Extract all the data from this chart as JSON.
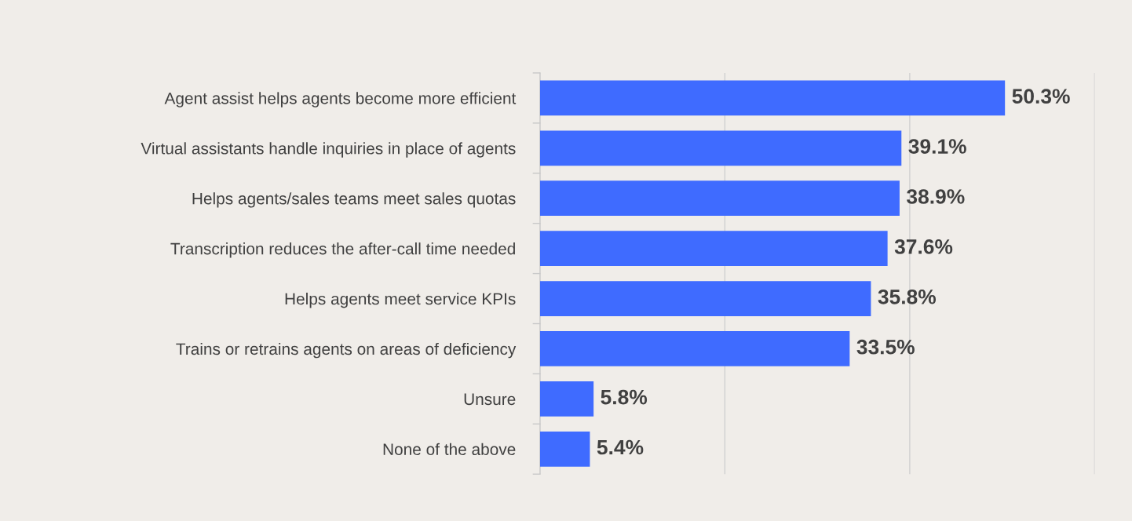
{
  "chart_data": {
    "type": "bar",
    "orientation": "horizontal",
    "categories": [
      "Agent assist helps agents become more efficient",
      "Virtual assistants handle inquiries in place of agents",
      "Helps agents/sales teams meet sales quotas",
      "Transcription reduces the after-call time needed",
      "Helps agents meet service KPIs",
      "Trains or retrains agents on areas of deficiency",
      "Unsure",
      "None of the above"
    ],
    "series": [
      {
        "color": "#3f6bff",
        "values": [
          50.3,
          39.1,
          38.9,
          37.6,
          35.8,
          33.5,
          5.8,
          5.4
        ],
        "value_labels": [
          "50.3%",
          "39.1%",
          "38.9%",
          "37.6%",
          "35.8%",
          "33.5%",
          "5.8%",
          "5.4%"
        ]
      }
    ],
    "xlim": [
      0,
      60
    ],
    "xticks": [
      {
        "value": 0,
        "label": null
      },
      {
        "value": 20,
        "label": null
      },
      {
        "value": 40,
        "label": null
      },
      {
        "value": 60,
        "label": null
      }
    ],
    "grid": "x",
    "tick_labels": "y"
  }
}
